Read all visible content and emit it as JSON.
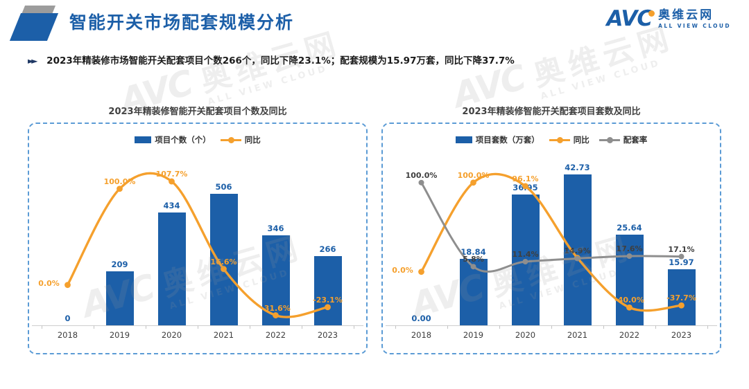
{
  "header": {
    "title": "智能开关市场配套规模分析",
    "logo": {
      "abbr": "AVC",
      "cn": "奥维云网",
      "en": "ALL VIEW CLOUD"
    }
  },
  "bullet": {
    "marker": "►►",
    "text": "2023年精装修市场智能开关配套项目个数266个，同比下降23.1%；配套规模为15.97万套，同比下降37.7%"
  },
  "watermark": {
    "abbr": "AVC",
    "cn": "奥维云网",
    "en": "ALL VIEW CLOUD"
  },
  "colors": {
    "brand_blue": "#1c5fa8",
    "accent_orange": "#f5a02d",
    "line_gray": "#8e8e8e",
    "label_dark": "#3f3f3f",
    "card_border": "#5b9bd5"
  },
  "chart_data": [
    {
      "type": "bar+line",
      "title": "2023年精装修智能开关配套项目个数及同比",
      "categories": [
        "2018",
        "2019",
        "2020",
        "2021",
        "2022",
        "2023"
      ],
      "bar_series": {
        "name": "项目个数（个）",
        "color": "#1c5fa8",
        "values": [
          0,
          209,
          434,
          506,
          346,
          266
        ],
        "labels": [
          "0",
          "209",
          "434",
          "506",
          "346",
          "266"
        ]
      },
      "line_series": [
        {
          "name": "同比",
          "color": "#f5a02d",
          "values": [
            0.0,
            100.0,
            107.7,
            16.6,
            -31.6,
            -23.1
          ],
          "labels": [
            "0.0%",
            "100.0%",
            "107.7%",
            "16.6%",
            "-31.6%",
            "-23.1%"
          ]
        }
      ],
      "bar_ylim": [
        0,
        666
      ],
      "pct_ylim": [
        -42,
        138
      ],
      "legend_position": "top",
      "grid": false
    },
    {
      "type": "bar+line",
      "title": "2023年精装修智能开关配套项目套数及同比",
      "categories": [
        "2018",
        "2019",
        "2020",
        "2021",
        "2022",
        "2023"
      ],
      "bar_series": {
        "name": "项目套数（万套）",
        "color": "#1c5fa8",
        "values": [
          0.0,
          18.84,
          36.95,
          42.73,
          25.64,
          15.97
        ],
        "labels": [
          "0.00",
          "18.84",
          "36.95",
          "42.73",
          "25.64",
          "15.97"
        ]
      },
      "line_series": [
        {
          "name": "同比",
          "color": "#f5a02d",
          "values": [
            0.0,
            100.0,
            96.1,
            15.6,
            -40.0,
            -37.7
          ],
          "labels": [
            "0.0%",
            "100.0%",
            "96.1%",
            "",
            "-40.0%",
            "-37.7%"
          ]
        },
        {
          "name": "配套率",
          "color": "#8e8e8e",
          "label_color": "#3f3f3f",
          "values": [
            100.0,
            5.8,
            11.4,
            14.9,
            17.6,
            17.1
          ],
          "labels": [
            "100.0%",
            "5.8%",
            "11.4%",
            "14.9%",
            "17.6%",
            "17.1%"
          ]
        }
      ],
      "bar_ylim": [
        0,
        49
      ],
      "pct_ylim": [
        -60,
        134
      ],
      "legend_position": "top",
      "grid": false
    }
  ]
}
